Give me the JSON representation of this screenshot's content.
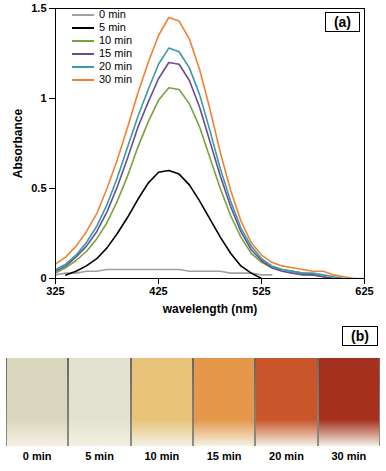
{
  "chart_data": {
    "type": "line",
    "annotation": "(a)",
    "x_label": "wavelength (nm)",
    "y_label": "Absorbance",
    "x": [
      325,
      335,
      345,
      355,
      365,
      375,
      385,
      395,
      405,
      415,
      425,
      435,
      445,
      455,
      465,
      475,
      485,
      495,
      505,
      515,
      525,
      535,
      545,
      555,
      565,
      575,
      585,
      595,
      605,
      615,
      625
    ],
    "series": [
      {
        "name": "0 min",
        "color": "#a0a0a0",
        "values": [
          0.02,
          0.03,
          0.03,
          0.04,
          0.04,
          0.05,
          0.05,
          0.05,
          0.05,
          0.05,
          0.05,
          0.05,
          0.05,
          0.04,
          0.04,
          0.04,
          0.04,
          0.03,
          0.03,
          0.03,
          0.02,
          0.02,
          null,
          null,
          null,
          null,
          null,
          null,
          null,
          null,
          null
        ]
      },
      {
        "name": "5 min",
        "color": "#000000",
        "values": [
          null,
          0.02,
          0.04,
          0.07,
          0.11,
          0.17,
          0.25,
          0.34,
          0.44,
          0.53,
          0.59,
          0.6,
          0.58,
          0.52,
          0.43,
          0.33,
          0.23,
          0.14,
          0.07,
          0.03,
          0.0,
          null,
          null,
          null,
          null,
          null,
          null,
          null,
          null,
          null,
          null
        ]
      },
      {
        "name": "10 min",
        "color": "#77a33c",
        "values": [
          0.03,
          0.06,
          0.1,
          0.15,
          0.22,
          0.31,
          0.43,
          0.57,
          0.73,
          0.87,
          0.99,
          1.06,
          1.05,
          0.97,
          0.84,
          0.67,
          0.5,
          0.35,
          0.23,
          0.14,
          0.09,
          0.06,
          0.05,
          0.04,
          0.03,
          0.02,
          0.01,
          0,
          null,
          null,
          null
        ]
      },
      {
        "name": "15 min",
        "color": "#6a4c93",
        "values": [
          0.04,
          0.07,
          0.12,
          0.18,
          0.26,
          0.37,
          0.51,
          0.67,
          0.84,
          0.98,
          1.11,
          1.2,
          1.19,
          1.1,
          0.95,
          0.76,
          0.57,
          0.4,
          0.26,
          0.16,
          0.1,
          0.06,
          0.04,
          0.03,
          0.02,
          0.02,
          0.01,
          0,
          null,
          null,
          null
        ]
      },
      {
        "name": "20 min",
        "color": "#3a9aa6",
        "values": [
          0.05,
          0.08,
          0.13,
          0.2,
          0.29,
          0.41,
          0.56,
          0.73,
          0.9,
          1.05,
          1.19,
          1.28,
          1.26,
          1.17,
          1.02,
          0.82,
          0.61,
          0.43,
          0.28,
          0.18,
          0.11,
          0.07,
          0.05,
          0.04,
          0.03,
          0.03,
          0.02,
          0.01,
          0,
          null,
          null
        ]
      },
      {
        "name": "30 min",
        "color": "#f08232",
        "values": [
          0.08,
          0.12,
          0.18,
          0.26,
          0.36,
          0.5,
          0.66,
          0.84,
          1.03,
          1.2,
          1.35,
          1.45,
          1.43,
          1.33,
          1.16,
          0.94,
          0.7,
          0.49,
          0.32,
          0.2,
          0.13,
          0.09,
          0.07,
          0.06,
          0.05,
          0.04,
          0.04,
          0.02,
          0.01,
          0.0,
          0.0
        ]
      }
    ],
    "xlim": [
      325,
      625
    ],
    "xticks": [
      325,
      425,
      525,
      625
    ],
    "ylim": [
      0,
      1.5
    ],
    "yticks": [
      0,
      0.5,
      1,
      1.5
    ],
    "legend": "top-left"
  },
  "photo": {
    "label": "(b)",
    "captions": [
      "0 min",
      "5 min",
      "10 min",
      "15 min",
      "20 min",
      "30 min"
    ],
    "colors": [
      "#d9d7bd",
      "#e3e1cf",
      "#e7c47a",
      "#e6984a",
      "#c9562b",
      "#a5301d"
    ]
  }
}
